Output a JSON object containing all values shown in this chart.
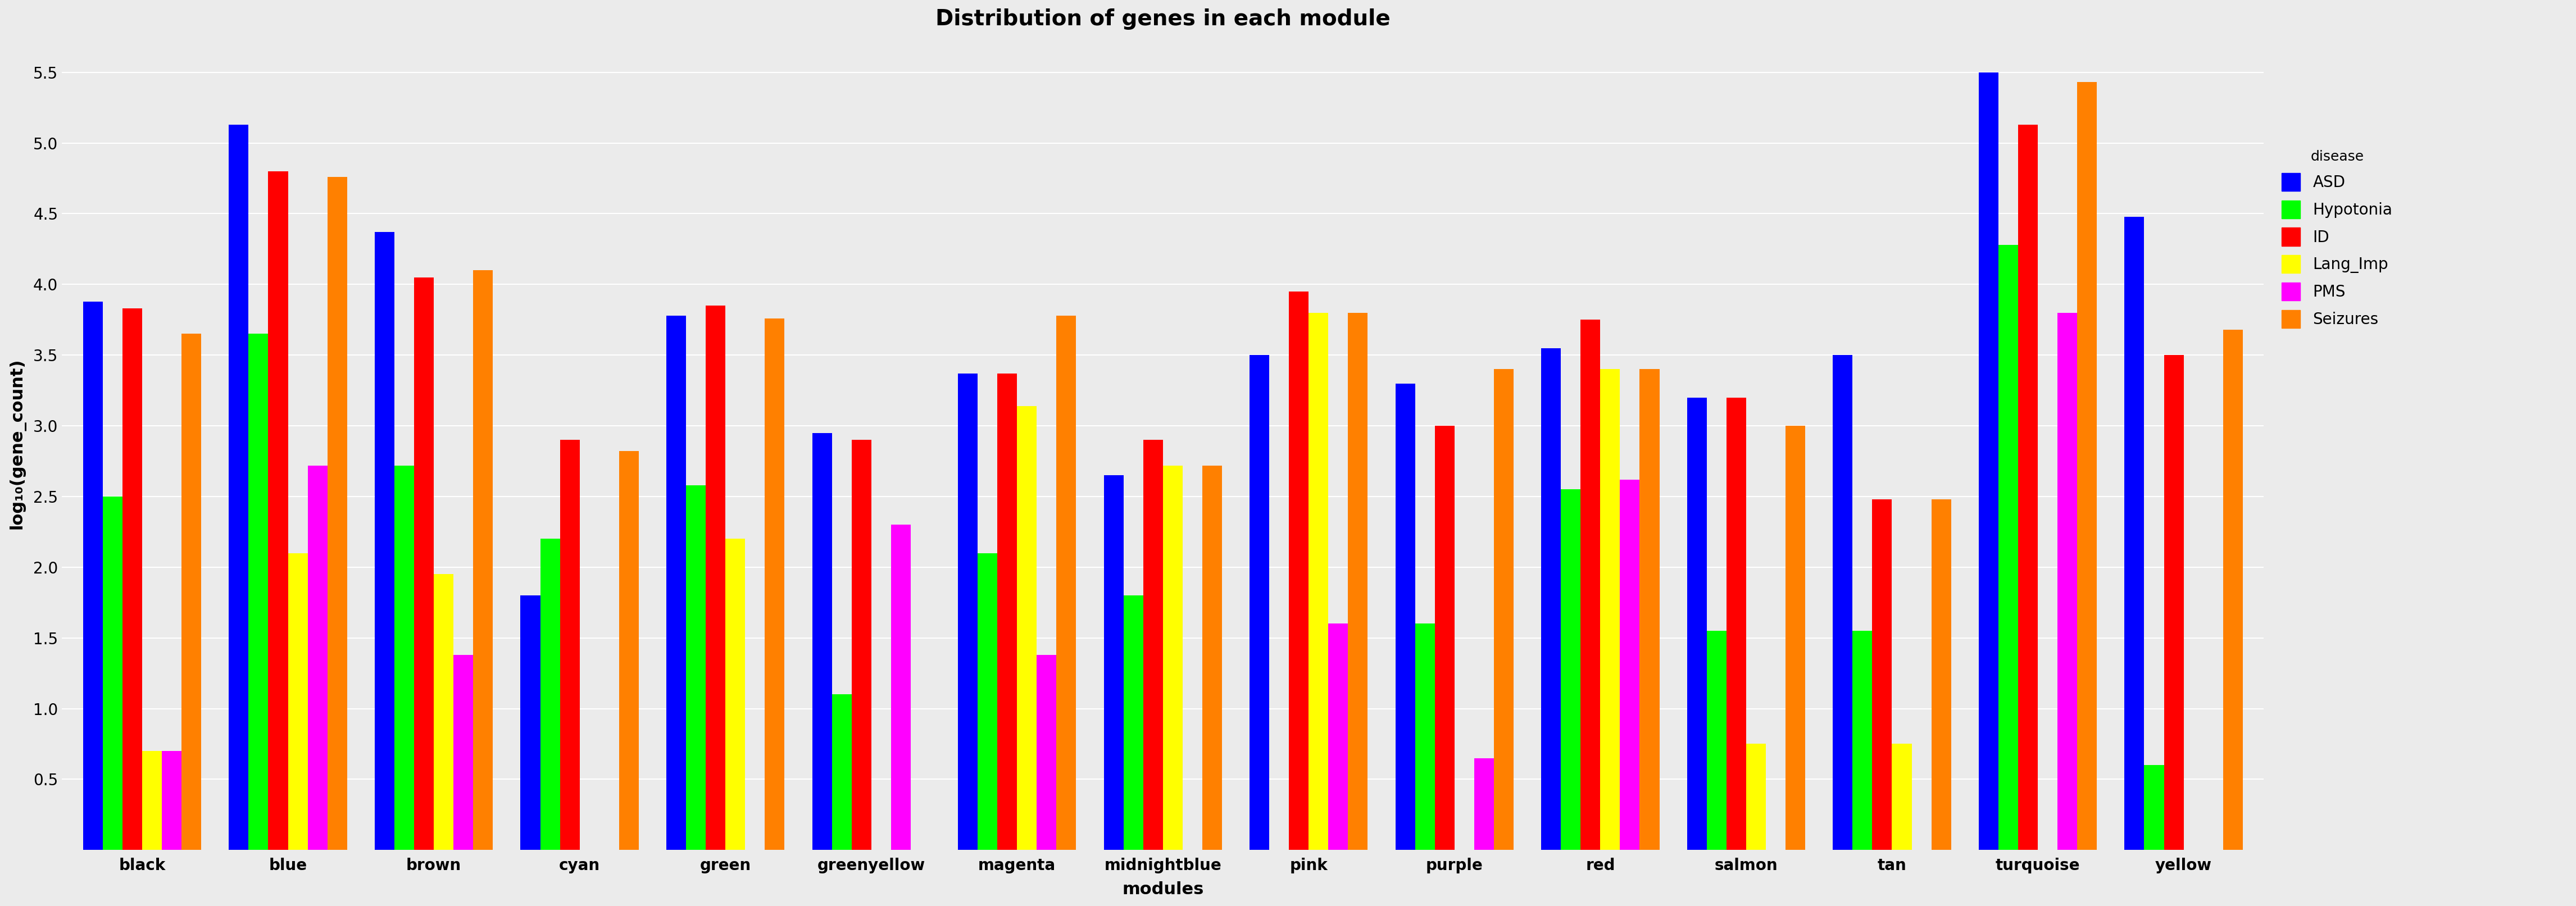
{
  "title": "Distribution of genes in each module",
  "xlabel": "modules",
  "ylabel": "log₁₀(gene_count)",
  "modules": [
    "black",
    "blue",
    "brown",
    "cyan",
    "green",
    "greenyellow",
    "magenta",
    "midnightblue",
    "pink",
    "purple",
    "red",
    "salmon",
    "tan",
    "turquoise",
    "yellow"
  ],
  "diseases": [
    "ASD",
    "Hypotonia",
    "ID",
    "Lang_Imp",
    "PMS",
    "Seizures"
  ],
  "colors": [
    "#0000FF",
    "#00FF00",
    "#FF0000",
    "#FFFF00",
    "#FF00FF",
    "#FF8000"
  ],
  "values": {
    "black": [
      3.88,
      2.5,
      3.83,
      0.7,
      0.7,
      3.65
    ],
    "blue": [
      5.13,
      3.65,
      4.8,
      2.1,
      2.72,
      4.76
    ],
    "brown": [
      4.37,
      2.72,
      4.05,
      1.95,
      1.38,
      4.1
    ],
    "cyan": [
      1.8,
      2.2,
      2.9,
      0.0,
      0.0,
      2.82
    ],
    "green": [
      3.78,
      2.58,
      3.85,
      2.2,
      0.0,
      3.76
    ],
    "greenyellow": [
      2.95,
      1.1,
      2.9,
      0.0,
      2.3,
      0.0
    ],
    "magenta": [
      3.37,
      2.1,
      3.37,
      3.14,
      1.38,
      3.78
    ],
    "midnightblue": [
      2.65,
      1.8,
      2.9,
      2.72,
      0.0,
      2.72
    ],
    "pink": [
      3.5,
      0.0,
      3.95,
      3.8,
      1.6,
      3.8
    ],
    "purple": [
      3.3,
      1.6,
      3.0,
      0.0,
      0.65,
      3.4
    ],
    "red": [
      3.55,
      2.55,
      3.75,
      3.4,
      2.62,
      3.4
    ],
    "salmon": [
      3.2,
      1.55,
      3.2,
      0.75,
      0.0,
      3.0
    ],
    "tan": [
      3.5,
      1.55,
      2.48,
      0.75,
      0.0,
      2.48
    ],
    "turquoise": [
      5.5,
      4.28,
      5.13,
      0.0,
      3.8,
      5.43
    ],
    "yellow": [
      4.48,
      0.6,
      3.5,
      0.0,
      0.0,
      3.68
    ]
  },
  "ylim": [
    0,
    5.75
  ],
  "yticks": [
    0.5,
    1.0,
    1.5,
    2.0,
    2.5,
    3.0,
    3.5,
    4.0,
    4.5,
    5.0,
    5.5
  ],
  "background_color": "#EBEBEB",
  "title_fontsize": 28,
  "axis_label_fontsize": 22,
  "tick_fontsize": 20,
  "legend_fontsize": 20,
  "legend_title_fontsize": 18,
  "bar_width": 0.135
}
